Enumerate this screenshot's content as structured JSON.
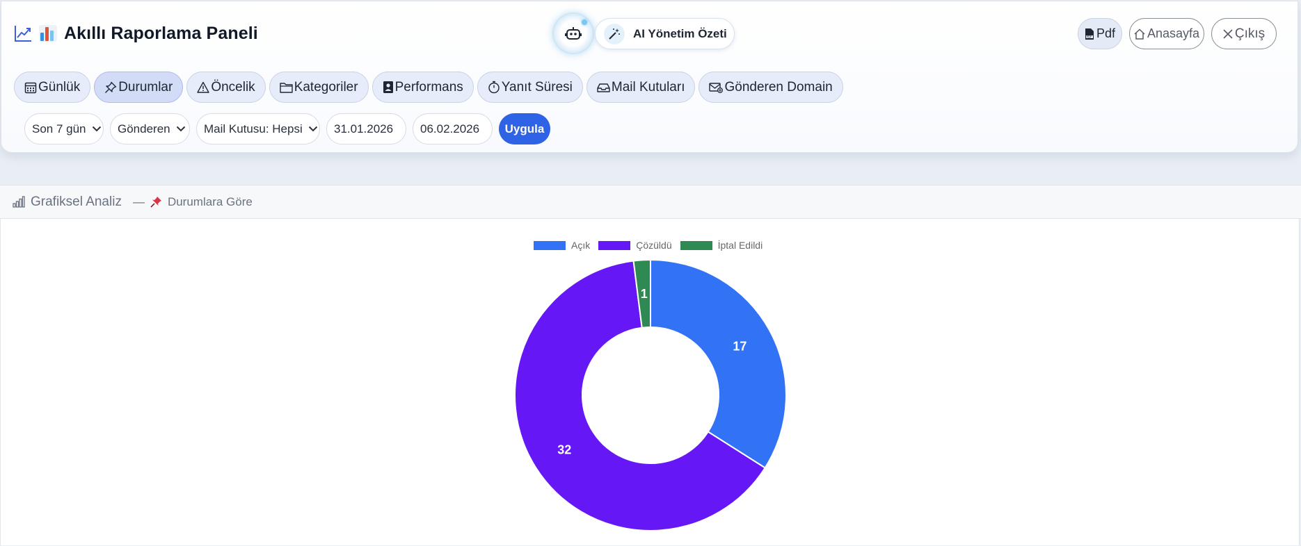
{
  "header": {
    "title": "Akıllı Raporlama Paneli",
    "ai_button_label": "AI Yönetim Özeti",
    "pdf_label": "Pdf",
    "home_label": "Anasayfa",
    "exit_label": "Çıkış"
  },
  "tabs": [
    {
      "label": "Günlük",
      "icon": "calendar-icon"
    },
    {
      "label": "Durumlar",
      "icon": "pin-icon",
      "active": true
    },
    {
      "label": "Öncelik",
      "icon": "warning-icon"
    },
    {
      "label": "Kategoriler",
      "icon": "folder-icon"
    },
    {
      "label": "Performans",
      "icon": "badge-icon"
    },
    {
      "label": "Yanıt Süresi",
      "icon": "stopwatch-icon"
    },
    {
      "label": "Mail Kutuları",
      "icon": "inbox-icon"
    },
    {
      "label": "Gönderen Domain",
      "icon": "mail-at-icon"
    }
  ],
  "filters": {
    "period": "Son 7 gün",
    "sender": "Gönderen",
    "mailbox": "Mail Kutusu: Hepsi",
    "start_date": "31.01.2026",
    "end_date": "06.02.2026",
    "apply_label": "Uygula"
  },
  "analysis": {
    "title": "Grafiksel Analiz",
    "separator": "—",
    "subtitle": "Durumlara Göre"
  },
  "chart_data": {
    "type": "pie",
    "variant": "doughnut",
    "categories": [
      "Açık",
      "Çözüldü",
      "İptal Edildi"
    ],
    "values": [
      17,
      32,
      1
    ],
    "colors": [
      "#3273f6",
      "#6617f5",
      "#2e8a52"
    ],
    "legend_position": "top",
    "data_labels": true
  }
}
